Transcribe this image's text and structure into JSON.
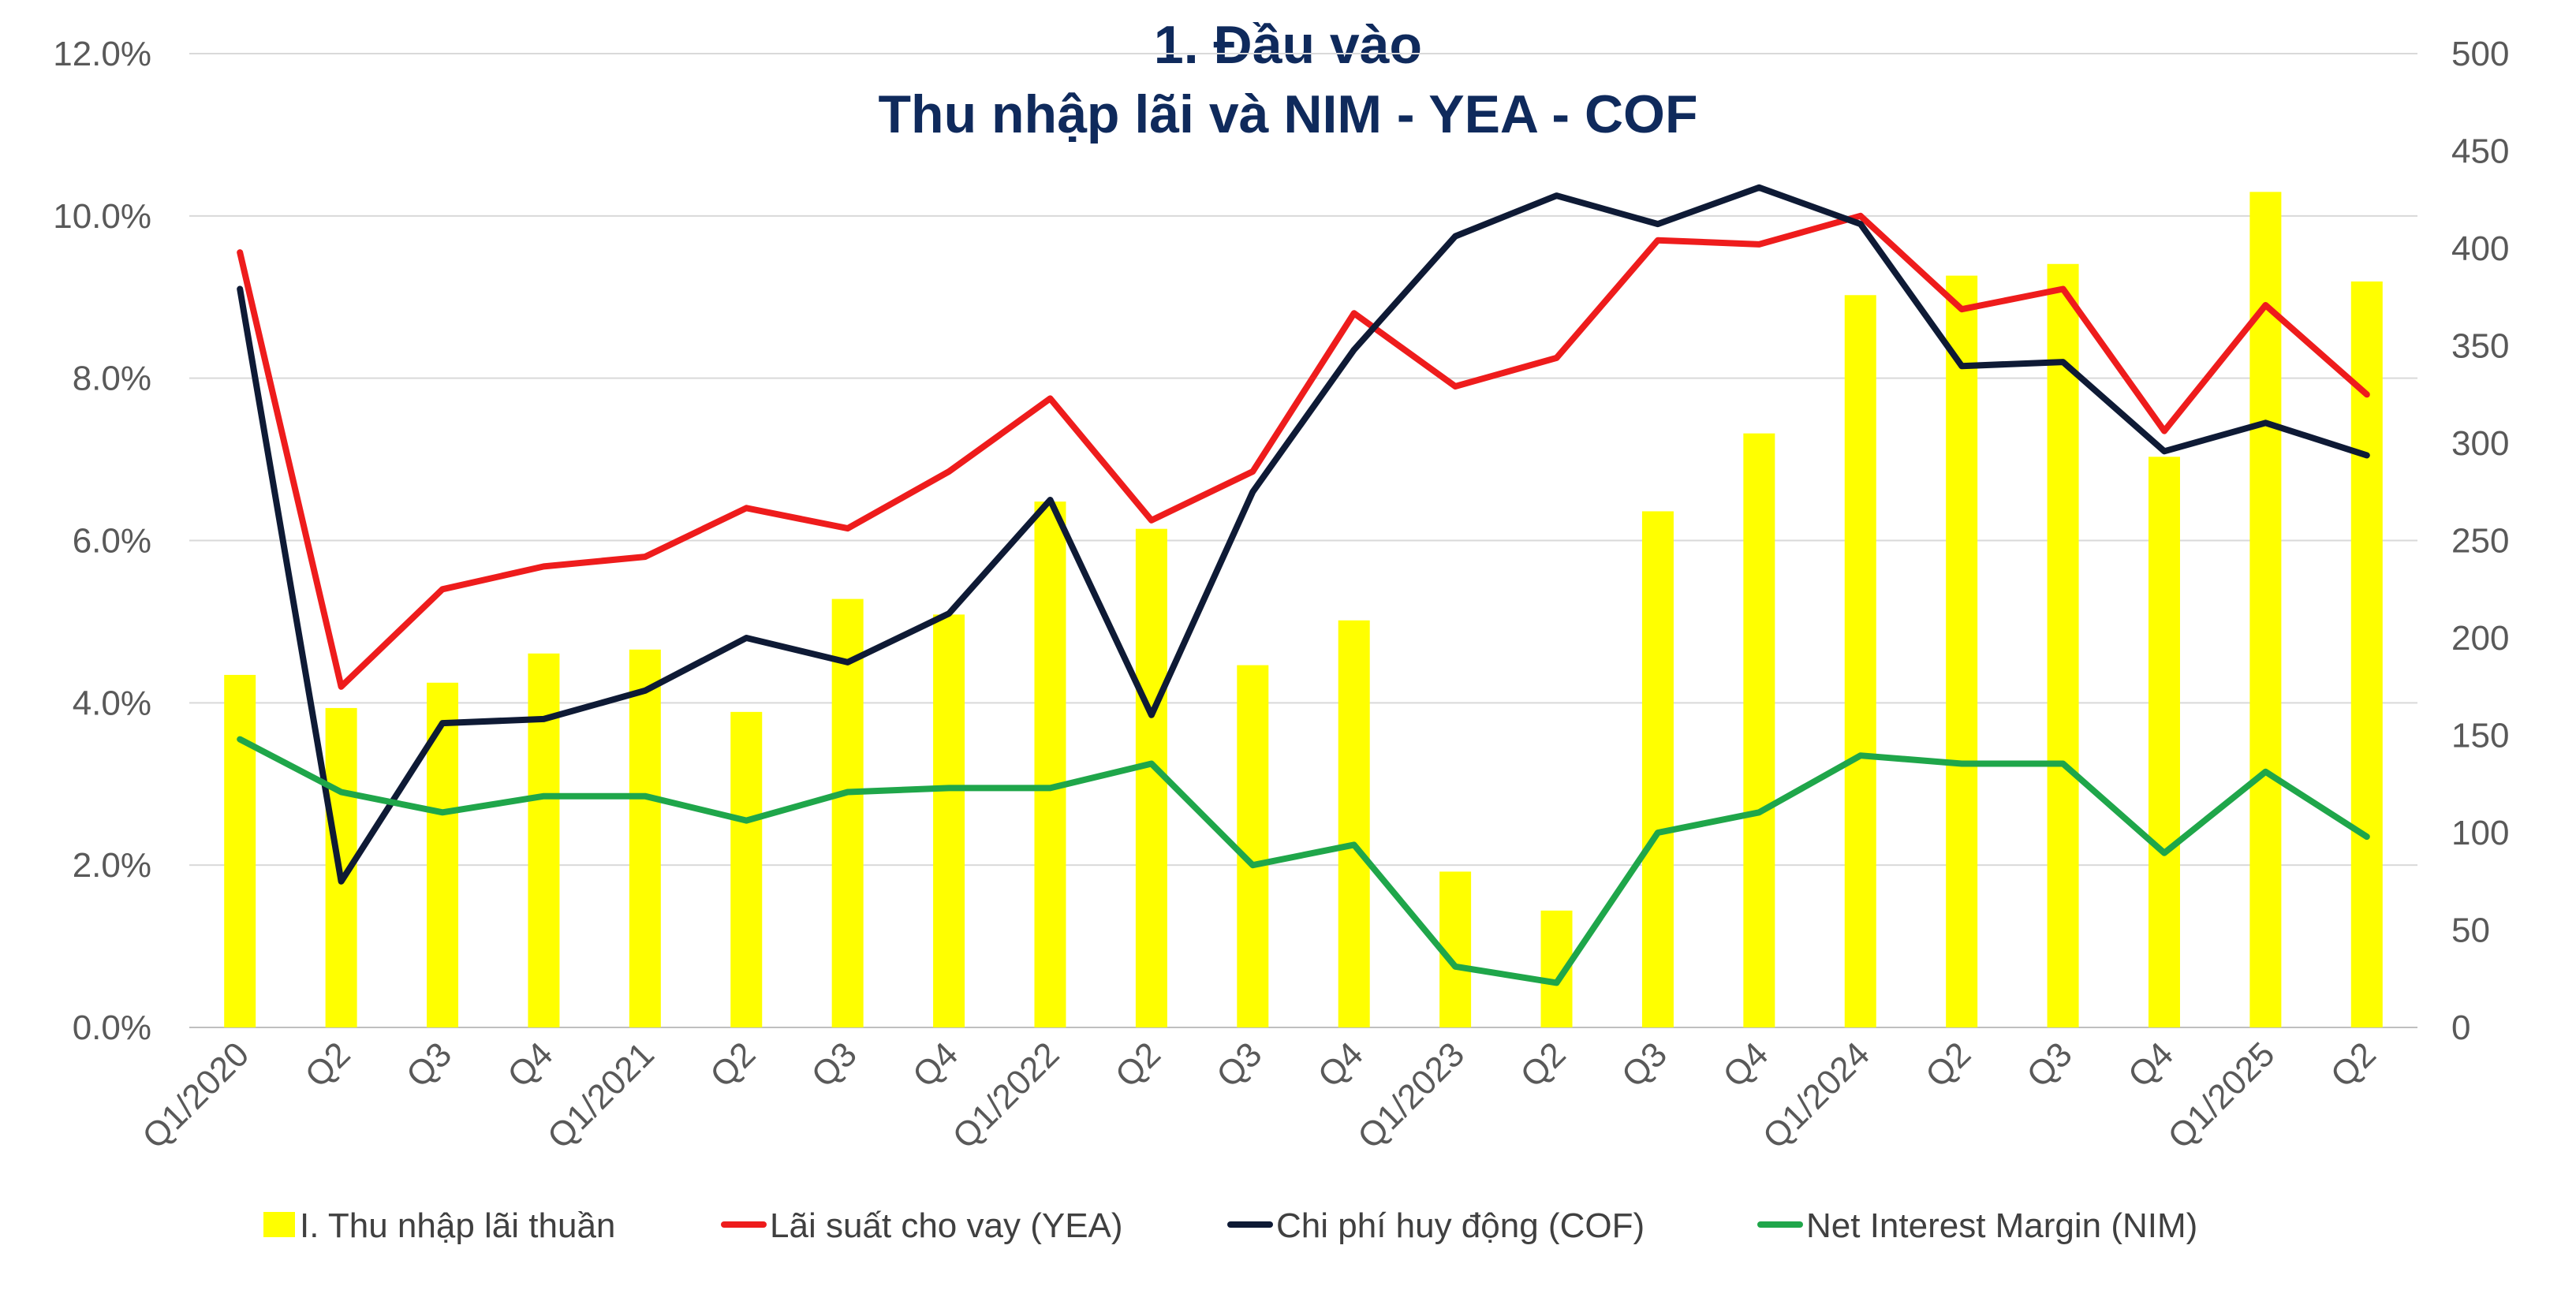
{
  "chart_data": {
    "type": "bar",
    "title": "1. Đầu vào",
    "subtitle": "Thu nhập lãi và NIM - YEA - COF",
    "categories": [
      "Q1/2020",
      "Q2",
      "Q3",
      "Q4",
      "Q1/2021",
      "Q2",
      "Q3",
      "Q4",
      "Q1/2022",
      "Q2",
      "Q3",
      "Q4",
      "Q1/2023",
      "Q2",
      "Q3",
      "Q4",
      "Q1/2024",
      "Q2",
      "Q3",
      "Q4",
      "Q1/2025",
      "Q2"
    ],
    "left_axis": {
      "ylim": [
        0,
        12
      ],
      "ticks": [
        "0.0%",
        "2.0%",
        "4.0%",
        "6.0%",
        "8.0%",
        "10.0%",
        "12.0%"
      ]
    },
    "right_axis": {
      "ylim": [
        0,
        500
      ],
      "ticks": [
        "0",
        "50",
        "100",
        "150",
        "200",
        "250",
        "300",
        "350",
        "400",
        "450",
        "500"
      ]
    },
    "grid": true,
    "legend_position": "bottom",
    "series": [
      {
        "name": "I. Thu nhập lãi thuần",
        "kind": "bar",
        "axis": "right",
        "color": "#ffff00",
        "values": [
          181,
          164,
          177,
          192,
          194,
          162,
          220,
          212,
          270,
          256,
          186,
          209,
          80,
          60,
          265,
          305,
          376,
          386,
          392,
          293,
          429,
          383
        ]
      },
      {
        "name": "Lãi suất cho vay (YEA)",
        "kind": "line",
        "axis": "left",
        "color": "#ee1c1c",
        "values": [
          9.55,
          4.2,
          5.4,
          5.68,
          5.8,
          6.4,
          6.15,
          6.85,
          7.75,
          6.25,
          6.85,
          8.8,
          7.9,
          8.25,
          9.7,
          9.65,
          10.0,
          8.85,
          9.1,
          7.35,
          8.9,
          7.8
        ]
      },
      {
        "name": "Chi phí huy động (COF)",
        "kind": "line",
        "axis": "left",
        "color": "#0e1a35",
        "values": [
          9.1,
          1.8,
          3.75,
          3.8,
          4.15,
          4.8,
          4.5,
          5.1,
          6.5,
          3.85,
          6.6,
          8.35,
          9.75,
          10.25,
          9.9,
          10.35,
          9.9,
          8.15,
          8.2,
          7.1,
          7.45,
          7.05
        ]
      },
      {
        "name": "Net Interest Margin (NIM)",
        "kind": "line",
        "axis": "left",
        "color": "#1fa64a",
        "values": [
          3.55,
          2.9,
          2.65,
          2.85,
          2.85,
          2.55,
          2.9,
          2.95,
          2.95,
          3.25,
          2.0,
          2.25,
          0.75,
          0.55,
          2.4,
          2.65,
          3.35,
          3.25,
          3.25,
          2.15,
          3.15,
          2.35
        ]
      }
    ]
  }
}
